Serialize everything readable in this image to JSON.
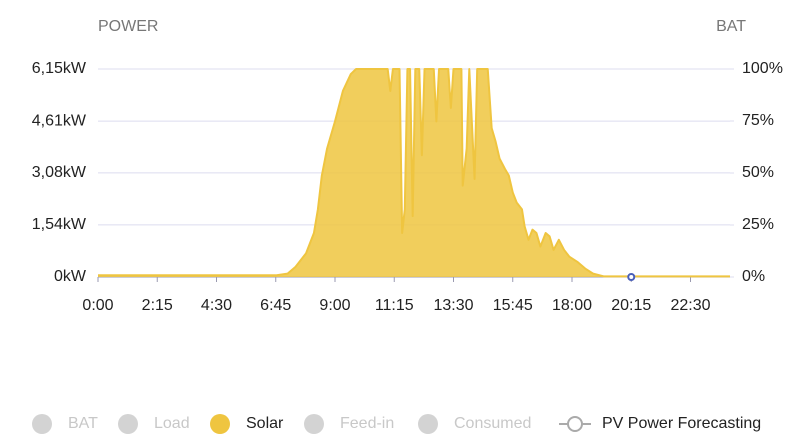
{
  "chart_data": {
    "type": "area",
    "y_title": "POWER",
    "y2_title": "BAT",
    "xlim": [
      0,
      24
    ],
    "xticks": [
      {
        "value": 0,
        "label": "0:00"
      },
      {
        "value": 2.25,
        "label": "2:15"
      },
      {
        "value": 4.5,
        "label": "4:30"
      },
      {
        "value": 6.75,
        "label": "6:45"
      },
      {
        "value": 9,
        "label": "9:00"
      },
      {
        "value": 11.25,
        "label": "11:15"
      },
      {
        "value": 13.5,
        "label": "13:30"
      },
      {
        "value": 15.75,
        "label": "15:45"
      },
      {
        "value": 18,
        "label": "18:00"
      },
      {
        "value": 20.25,
        "label": "20:15"
      },
      {
        "value": 22.5,
        "label": "22:30"
      }
    ],
    "ylim": [
      0,
      6.15
    ],
    "yticks": [
      {
        "value": 0,
        "label": "0kW"
      },
      {
        "value": 1.54,
        "label": "1,54kW"
      },
      {
        "value": 3.08,
        "label": "3,08kW"
      },
      {
        "value": 4.61,
        "label": "4,61kW"
      },
      {
        "value": 6.15,
        "label": "6,15kW"
      }
    ],
    "y2lim": [
      0,
      100
    ],
    "y2ticks": [
      {
        "value": 0,
        "label": "0%"
      },
      {
        "value": 25,
        "label": "25%"
      },
      {
        "value": 50,
        "label": "50%"
      },
      {
        "value": 75,
        "label": "75%"
      },
      {
        "value": 100,
        "label": "100%"
      }
    ],
    "grid": true,
    "series": [
      {
        "name": "BAT",
        "color": "#d3d3d3",
        "visible": false,
        "x": [],
        "values": []
      },
      {
        "name": "Load",
        "color": "#d3d3d3",
        "visible": false,
        "x": [],
        "values": []
      },
      {
        "name": "Solar",
        "color": "#efc540",
        "visible": true,
        "x": [
          0,
          2.25,
          4.5,
          6.75,
          7.2,
          7.5,
          7.9,
          8.2,
          8.35,
          8.5,
          8.7,
          9.0,
          9.3,
          9.6,
          9.8,
          10.7,
          11.0,
          11.1,
          11.2,
          11.45,
          11.55,
          11.65,
          11.75,
          11.85,
          11.95,
          12.05,
          12.2,
          12.3,
          12.4,
          12.75,
          12.85,
          12.95,
          13.3,
          13.4,
          13.5,
          13.8,
          13.85,
          14.0,
          14.1,
          14.3,
          14.4,
          14.8,
          14.95,
          15.1,
          15.25,
          15.45,
          15.6,
          15.75,
          15.9,
          16.1,
          16.2,
          16.35,
          16.5,
          16.65,
          16.8,
          17.0,
          17.15,
          17.3,
          17.5,
          17.7,
          17.9,
          18.2,
          18.5,
          18.8,
          19.2,
          20.25,
          24
        ],
        "values": [
          0.05,
          0.05,
          0.05,
          0.05,
          0.1,
          0.3,
          0.7,
          1.3,
          2.0,
          3.0,
          3.8,
          4.6,
          5.5,
          6.0,
          6.15,
          6.15,
          6.15,
          5.5,
          6.15,
          6.15,
          1.3,
          2.0,
          6.15,
          6.15,
          1.8,
          6.15,
          6.15,
          3.6,
          6.15,
          6.15,
          4.6,
          6.15,
          6.15,
          5.0,
          6.15,
          6.15,
          2.7,
          3.8,
          6.15,
          2.9,
          6.15,
          6.15,
          4.4,
          4.0,
          3.5,
          3.2,
          3.0,
          2.5,
          2.2,
          2.0,
          1.5,
          1.1,
          1.4,
          1.3,
          0.9,
          1.3,
          1.2,
          0.8,
          1.1,
          0.8,
          0.6,
          0.45,
          0.25,
          0.1,
          0.02,
          0.02,
          0.02
        ]
      },
      {
        "name": "Feed-in",
        "color": "#d3d3d3",
        "visible": false,
        "x": [],
        "values": []
      },
      {
        "name": "Consumed",
        "color": "#d3d3d3",
        "visible": false,
        "x": [],
        "values": []
      },
      {
        "name": "PV Power Forecasting",
        "color": "#4a5fb8",
        "visible": true,
        "style": "line",
        "x": [
          20.25
        ],
        "values": [
          0
        ]
      }
    ]
  }
}
